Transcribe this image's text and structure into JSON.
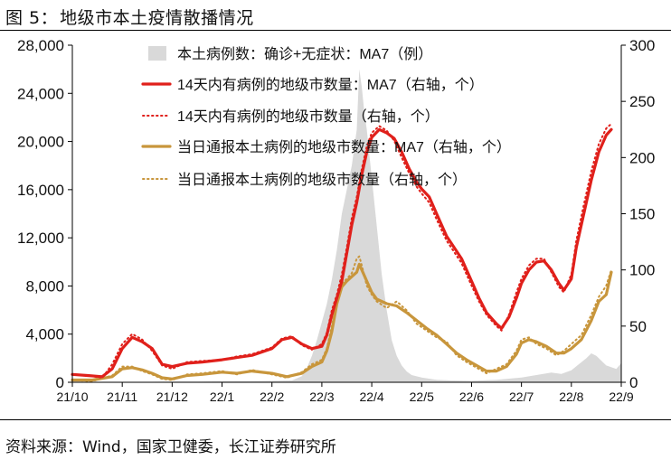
{
  "figure": {
    "number": "图 5：",
    "title": "地级市本土疫情散播情况",
    "source": "资料来源：Wind，国家卫健委，长江证券研究所"
  },
  "chart_data": {
    "type": "area+line",
    "x_ticks": [
      "21/10",
      "21/11",
      "21/12",
      "22/1",
      "22/2",
      "22/3",
      "22/4",
      "22/5",
      "22/6",
      "22/7",
      "22/8",
      "22/9"
    ],
    "y_left": {
      "min": 0,
      "max": 28000,
      "ticks": [
        "0",
        "4,000",
        "8,000",
        "12,000",
        "16,000",
        "20,000",
        "24,000",
        "28,000"
      ]
    },
    "y_right": {
      "min": 0,
      "max": 300,
      "ticks": [
        "0",
        "50",
        "100",
        "150",
        "200",
        "250",
        "300"
      ]
    },
    "colors": {
      "area": "#d9d9d9",
      "red": "#e0201b",
      "gold": "#c8963c"
    },
    "legend": [
      {
        "label": "本土病例数：确诊+无症状：MA7（例）",
        "style": "area"
      },
      {
        "label": "14天内有病例的地级市数量：MA7（右轴，个）",
        "style": "red-solid"
      },
      {
        "label": "14天内有病例的地级市数量（右轴，个）",
        "style": "red-dotted"
      },
      {
        "label": "当日通报本土病例的地级市数量：MA7（右轴，个）",
        "style": "gold-solid"
      },
      {
        "label": "当日通报本土病例的地级市数量（右轴，个）",
        "style": "gold-dotted"
      }
    ],
    "series": [
      {
        "name": "本土病例数：确诊+无症状：MA7（例）",
        "axis": "left",
        "points": [
          [
            0,
            40
          ],
          [
            1,
            40
          ],
          [
            1.6,
            40
          ],
          [
            2,
            60
          ],
          [
            2.5,
            60
          ],
          [
            3,
            80
          ],
          [
            3.5,
            100
          ],
          [
            4,
            120
          ],
          [
            4.4,
            150
          ],
          [
            4.6,
            500
          ],
          [
            4.7,
            1200
          ],
          [
            4.8,
            2200
          ],
          [
            4.9,
            3500
          ],
          [
            5,
            5000
          ],
          [
            5.1,
            6500
          ],
          [
            5.2,
            8500
          ],
          [
            5.3,
            11000
          ],
          [
            5.4,
            14000
          ],
          [
            5.5,
            16000
          ],
          [
            5.6,
            18000
          ],
          [
            5.7,
            21000
          ],
          [
            5.75,
            26000
          ],
          [
            5.8,
            24500
          ],
          [
            5.85,
            22500
          ],
          [
            5.9,
            21000
          ],
          [
            5.95,
            19000
          ],
          [
            6,
            17000
          ],
          [
            6.1,
            13000
          ],
          [
            6.2,
            9000
          ],
          [
            6.3,
            6000
          ],
          [
            6.4,
            3500
          ],
          [
            6.5,
            2200
          ],
          [
            6.6,
            1400
          ],
          [
            6.7,
            900
          ],
          [
            6.8,
            600
          ],
          [
            7,
            400
          ],
          [
            7.3,
            200
          ],
          [
            7.6,
            150
          ],
          [
            8,
            120
          ],
          [
            8.5,
            200
          ],
          [
            9,
            400
          ],
          [
            9.3,
            600
          ],
          [
            9.6,
            800
          ],
          [
            9.8,
            700
          ],
          [
            10,
            1000
          ],
          [
            10.3,
            2000
          ],
          [
            10.4,
            2400
          ],
          [
            10.5,
            2200
          ],
          [
            10.7,
            1400
          ],
          [
            10.9,
            1100
          ],
          [
            11,
            1600
          ]
        ]
      },
      {
        "name": "14天内有病例的地级市数量：MA7（右轴，个）",
        "axis": "right",
        "points": [
          [
            0,
            7
          ],
          [
            0.3,
            6
          ],
          [
            0.6,
            5
          ],
          [
            0.8,
            12
          ],
          [
            1,
            30
          ],
          [
            1.2,
            40
          ],
          [
            1.4,
            36
          ],
          [
            1.6,
            30
          ],
          [
            1.8,
            16
          ],
          [
            2,
            14
          ],
          [
            2.3,
            17
          ],
          [
            2.6,
            18
          ],
          [
            3,
            20
          ],
          [
            3.3,
            22
          ],
          [
            3.6,
            24
          ],
          [
            4,
            30
          ],
          [
            4.2,
            38
          ],
          [
            4.4,
            40
          ],
          [
            4.6,
            34
          ],
          [
            4.8,
            30
          ],
          [
            5,
            32
          ],
          [
            5.1,
            42
          ],
          [
            5.2,
            60
          ],
          [
            5.3,
            75
          ],
          [
            5.4,
            90
          ],
          [
            5.5,
            115
          ],
          [
            5.6,
            140
          ],
          [
            5.7,
            160
          ],
          [
            5.8,
            185
          ],
          [
            5.9,
            205
          ],
          [
            6,
            218
          ],
          [
            6.15,
            225
          ],
          [
            6.3,
            222
          ],
          [
            6.45,
            217
          ],
          [
            6.6,
            205
          ],
          [
            6.75,
            190
          ],
          [
            6.9,
            178
          ],
          [
            7,
            172
          ],
          [
            7.15,
            165
          ],
          [
            7.3,
            150
          ],
          [
            7.5,
            130
          ],
          [
            7.8,
            110
          ],
          [
            8,
            90
          ],
          [
            8.15,
            75
          ],
          [
            8.3,
            62
          ],
          [
            8.5,
            52
          ],
          [
            8.6,
            48
          ],
          [
            8.75,
            58
          ],
          [
            8.9,
            75
          ],
          [
            9,
            88
          ],
          [
            9.15,
            100
          ],
          [
            9.3,
            107
          ],
          [
            9.45,
            108
          ],
          [
            9.6,
            100
          ],
          [
            9.75,
            88
          ],
          [
            9.85,
            82
          ],
          [
            10,
            92
          ],
          [
            10.1,
            120
          ],
          [
            10.25,
            150
          ],
          [
            10.4,
            180
          ],
          [
            10.55,
            205
          ],
          [
            10.7,
            220
          ],
          [
            10.8,
            225
          ]
        ]
      },
      {
        "name": "14天内有病例的地级市数量（右轴，个）",
        "axis": "right",
        "points": [
          [
            0,
            7
          ],
          [
            0.3,
            6
          ],
          [
            0.6,
            4
          ],
          [
            0.8,
            16
          ],
          [
            1,
            34
          ],
          [
            1.2,
            43
          ],
          [
            1.4,
            38
          ],
          [
            1.6,
            28
          ],
          [
            1.8,
            15
          ],
          [
            2,
            12
          ],
          [
            2.3,
            18
          ],
          [
            2.6,
            19
          ],
          [
            3,
            20
          ],
          [
            3.3,
            23
          ],
          [
            3.6,
            25
          ],
          [
            4,
            31
          ],
          [
            4.2,
            39
          ],
          [
            4.4,
            41
          ],
          [
            4.6,
            33
          ],
          [
            4.8,
            29
          ],
          [
            5,
            34
          ],
          [
            5.1,
            44
          ],
          [
            5.2,
            64
          ],
          [
            5.3,
            78
          ],
          [
            5.4,
            96
          ],
          [
            5.5,
            120
          ],
          [
            5.6,
            146
          ],
          [
            5.7,
            165
          ],
          [
            5.8,
            190
          ],
          [
            5.9,
            210
          ],
          [
            6,
            222
          ],
          [
            6.15,
            228
          ],
          [
            6.3,
            224
          ],
          [
            6.45,
            215
          ],
          [
            6.6,
            200
          ],
          [
            6.75,
            186
          ],
          [
            6.9,
            174
          ],
          [
            7,
            168
          ],
          [
            7.15,
            160
          ],
          [
            7.3,
            145
          ],
          [
            7.5,
            126
          ],
          [
            7.8,
            106
          ],
          [
            8,
            86
          ],
          [
            8.15,
            72
          ],
          [
            8.3,
            60
          ],
          [
            8.5,
            50
          ],
          [
            8.6,
            46
          ],
          [
            8.75,
            60
          ],
          [
            8.9,
            80
          ],
          [
            9,
            92
          ],
          [
            9.15,
            104
          ],
          [
            9.3,
            110
          ],
          [
            9.45,
            110
          ],
          [
            9.6,
            98
          ],
          [
            9.75,
            85
          ],
          [
            9.85,
            80
          ],
          [
            10,
            96
          ],
          [
            10.1,
            126
          ],
          [
            10.25,
            158
          ],
          [
            10.4,
            188
          ],
          [
            10.55,
            212
          ],
          [
            10.7,
            226
          ],
          [
            10.8,
            230
          ]
        ]
      },
      {
        "name": "当日通报本土病例的地级市数量：MA7（右轴，个）",
        "axis": "right",
        "points": [
          [
            0,
            2
          ],
          [
            0.4,
            2
          ],
          [
            0.8,
            5
          ],
          [
            1,
            12
          ],
          [
            1.2,
            13
          ],
          [
            1.4,
            11
          ],
          [
            1.6,
            8
          ],
          [
            1.8,
            4
          ],
          [
            2,
            3
          ],
          [
            2.3,
            6
          ],
          [
            2.6,
            7
          ],
          [
            3,
            9
          ],
          [
            3.3,
            8
          ],
          [
            3.6,
            10
          ],
          [
            4,
            8
          ],
          [
            4.3,
            5
          ],
          [
            4.6,
            8
          ],
          [
            4.8,
            14
          ],
          [
            5,
            18
          ],
          [
            5.1,
            28
          ],
          [
            5.2,
            45
          ],
          [
            5.3,
            70
          ],
          [
            5.4,
            85
          ],
          [
            5.5,
            90
          ],
          [
            5.6,
            94
          ],
          [
            5.7,
            98
          ],
          [
            5.75,
            105
          ],
          [
            5.8,
            100
          ],
          [
            5.9,
            90
          ],
          [
            6,
            80
          ],
          [
            6.1,
            74
          ],
          [
            6.3,
            70
          ],
          [
            6.5,
            68
          ],
          [
            6.7,
            62
          ],
          [
            6.9,
            55
          ],
          [
            7.1,
            48
          ],
          [
            7.3,
            42
          ],
          [
            7.5,
            34
          ],
          [
            7.7,
            26
          ],
          [
            7.9,
            20
          ],
          [
            8.1,
            15
          ],
          [
            8.3,
            10
          ],
          [
            8.5,
            10
          ],
          [
            8.7,
            14
          ],
          [
            8.9,
            25
          ],
          [
            9,
            35
          ],
          [
            9.15,
            38
          ],
          [
            9.3,
            36
          ],
          [
            9.5,
            32
          ],
          [
            9.7,
            26
          ],
          [
            9.85,
            26
          ],
          [
            10,
            30
          ],
          [
            10.2,
            38
          ],
          [
            10.4,
            55
          ],
          [
            10.55,
            72
          ],
          [
            10.7,
            78
          ],
          [
            10.8,
            98
          ]
        ]
      },
      {
        "name": "当日通报本土病例的地级市数量（右轴，个）",
        "axis": "right",
        "points": [
          [
            0,
            2
          ],
          [
            0.4,
            1
          ],
          [
            0.8,
            6
          ],
          [
            1,
            14
          ],
          [
            1.2,
            14
          ],
          [
            1.4,
            10
          ],
          [
            1.6,
            7
          ],
          [
            1.8,
            3
          ],
          [
            2,
            2
          ],
          [
            2.3,
            7
          ],
          [
            2.6,
            8
          ],
          [
            3,
            10
          ],
          [
            3.3,
            7
          ],
          [
            3.6,
            11
          ],
          [
            4,
            7
          ],
          [
            4.3,
            4
          ],
          [
            4.6,
            9
          ],
          [
            4.8,
            16
          ],
          [
            5,
            20
          ],
          [
            5.1,
            30
          ],
          [
            5.2,
            50
          ],
          [
            5.3,
            74
          ],
          [
            5.4,
            88
          ],
          [
            5.5,
            92
          ],
          [
            5.6,
            97
          ],
          [
            5.7,
            110
          ],
          [
            5.75,
            112
          ],
          [
            5.8,
            104
          ],
          [
            5.9,
            86
          ],
          [
            6,
            78
          ],
          [
            6.1,
            72
          ],
          [
            6.3,
            66
          ],
          [
            6.5,
            72
          ],
          [
            6.7,
            64
          ],
          [
            6.9,
            52
          ],
          [
            7.1,
            46
          ],
          [
            7.3,
            40
          ],
          [
            7.5,
            36
          ],
          [
            7.7,
            24
          ],
          [
            7.9,
            18
          ],
          [
            8.1,
            13
          ],
          [
            8.3,
            8
          ],
          [
            8.5,
            12
          ],
          [
            8.7,
            16
          ],
          [
            8.9,
            28
          ],
          [
            9,
            38
          ],
          [
            9.15,
            40
          ],
          [
            9.3,
            34
          ],
          [
            9.5,
            30
          ],
          [
            9.7,
            24
          ],
          [
            9.85,
            28
          ],
          [
            10,
            34
          ],
          [
            10.2,
            42
          ],
          [
            10.4,
            60
          ],
          [
            10.55,
            76
          ],
          [
            10.7,
            86
          ],
          [
            10.8,
            100
          ]
        ]
      }
    ]
  }
}
